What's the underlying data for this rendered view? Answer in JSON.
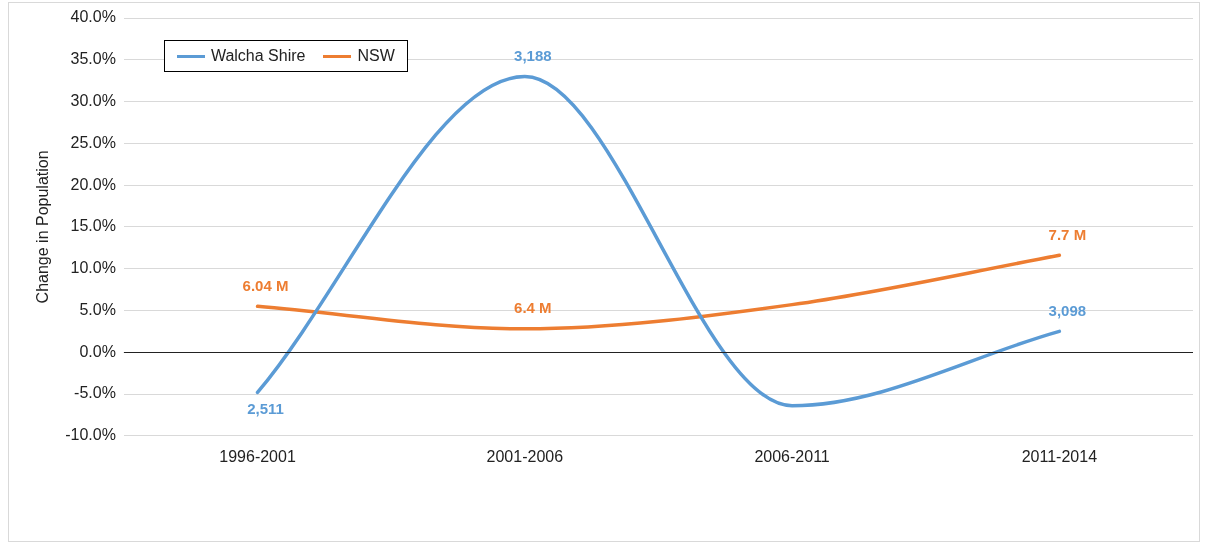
{
  "chart_data": {
    "type": "line",
    "ylabel": "Change in Population",
    "categories": [
      "1996-2001",
      "2001-2006",
      "2006-2011",
      "2011-2014"
    ],
    "series": [
      {
        "name": "Walcha Shire",
        "color": "#5b9bd5",
        "values": [
          -4.8,
          33.0,
          -6.4,
          2.5
        ]
      },
      {
        "name": "NSW",
        "color": "#ed7d31",
        "values": [
          5.5,
          2.8,
          5.7,
          11.6
        ]
      }
    ],
    "annotations": [
      {
        "text": "2,511",
        "x": "1996-2001",
        "y": -4.8
      },
      {
        "text": "3,188",
        "x": "2001-2006",
        "y": 33.0
      },
      {
        "text": "3,098",
        "x": "2011-2014",
        "y": 2.5
      },
      {
        "text": "6.04 M",
        "x": "1996-2001",
        "y": 5.5
      },
      {
        "text": "6.4 M",
        "x": "2001-2006",
        "y": 2.8
      },
      {
        "text": "7.7 M",
        "x": "2011-2014",
        "y": 11.6
      }
    ],
    "ylim": [
      -10,
      40
    ],
    "yticks": [
      {
        "value": -10,
        "label": "-10.0%"
      },
      {
        "value": -5,
        "label": "-5.0%"
      },
      {
        "value": 0,
        "label": "0.0%"
      },
      {
        "value": 5,
        "label": "5.0%"
      },
      {
        "value": 10,
        "label": "10.0%"
      },
      {
        "value": 15,
        "label": "15.0%"
      },
      {
        "value": 20,
        "label": "20.0%"
      },
      {
        "value": 25,
        "label": "25.0%"
      },
      {
        "value": 30,
        "label": "30.0%"
      },
      {
        "value": 35,
        "label": "35.0%"
      },
      {
        "value": 40,
        "label": "40.0%"
      }
    ],
    "grid": "y",
    "legend": "top left",
    "marker": "none",
    "line_style": "solid"
  }
}
